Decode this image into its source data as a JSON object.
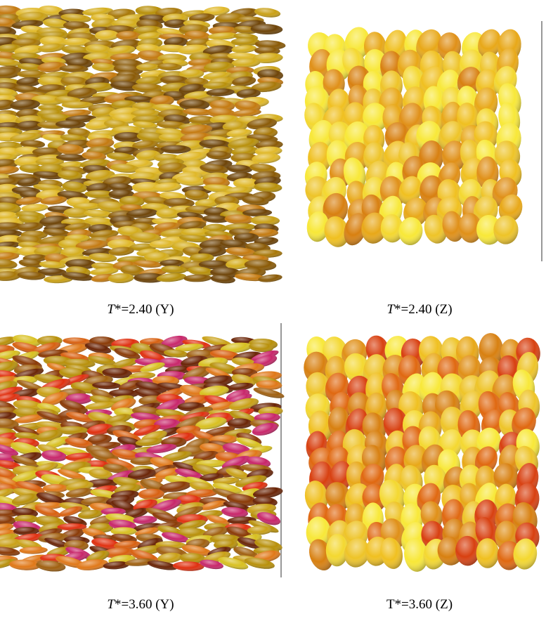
{
  "panels": [
    {
      "caption": {
        "italic": "T",
        "text": "*=2.40 (Y)"
      }
    },
    {
      "caption": {
        "italic": "T",
        "text": "*=2.40 (Z)"
      }
    },
    {
      "caption": {
        "italic": "T",
        "text": "*=3.60 (Y)"
      }
    },
    {
      "caption": {
        "text": "T*=3.60 (Z)"
      }
    }
  ]
}
